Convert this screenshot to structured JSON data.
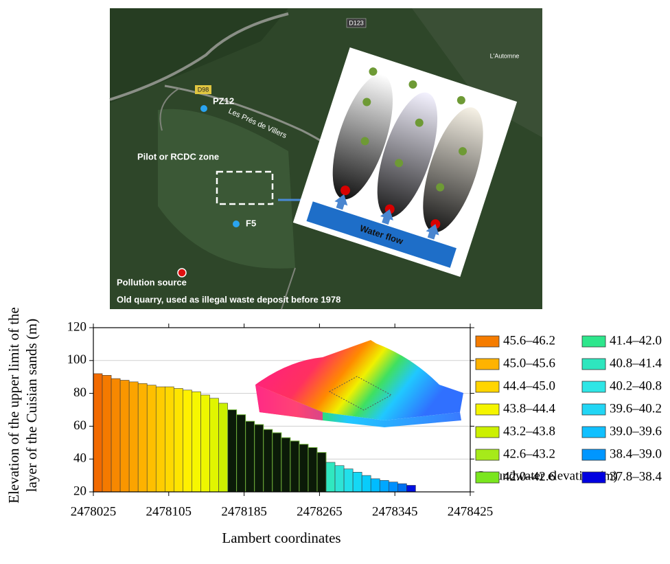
{
  "map": {
    "road_d123": "D123",
    "road_d98": "D98",
    "place_automne": "L'Automne",
    "place_villers": "Les Prés de Villers",
    "well_pz12": "PZ12",
    "well_f5": "F5",
    "pilot_zone": "Pilot or RCDC zone",
    "water_flow": "Water flow",
    "pollution_source": "Pollution source",
    "quarry_note": "Old quarry, used as illegal waste deposit before 1978"
  },
  "chart_data": {
    "type": "histogram",
    "x_label": "Lambert coordinates",
    "y_label": [
      "Elevation of the upper limit of the",
      "layer of the Cuisian sands (m)"
    ],
    "bins": [
      2478025,
      2478034.5,
      2478044,
      2478053.5,
      2478063,
      2478072.5,
      2478082,
      2478091.5,
      2478101,
      2478110.5,
      2478120,
      2478129.5,
      2478139,
      2478148.5,
      2478158,
      2478167.5,
      2478177,
      2478186.5,
      2478196,
      2478205.5,
      2478215,
      2478224.5,
      2478234,
      2478243.5,
      2478253,
      2478262.5,
      2478272,
      2478281.5,
      2478291,
      2478300.5,
      2478310,
      2478319.5,
      2478329,
      2478338.5,
      2478348,
      2478357.5,
      2478367
    ],
    "values": [
      92,
      91,
      89,
      88,
      87,
      86,
      85,
      84,
      84,
      83,
      82,
      81,
      79,
      77,
      74,
      70,
      67,
      63,
      61,
      58,
      56,
      53,
      51,
      49,
      47,
      44,
      38,
      36,
      34,
      32,
      30,
      28,
      27,
      26,
      25,
      24
    ],
    "colors": [
      "#f26a00",
      "#f57a00",
      "#f78800",
      "#f99600",
      "#fba400",
      "#fdb200",
      "#ffbf00",
      "#ffcc00",
      "#ffd800",
      "#ffe400",
      "#fff000",
      "#f7f700",
      "#eef700",
      "#e0f500",
      "#ccf000",
      "#0b1a08",
      "#0b1a08",
      "#0b1a08",
      "#0b1a08",
      "#0b1a08",
      "#0b1a08",
      "#0b1a08",
      "#0b1a08",
      "#0b1a08",
      "#0b1a08",
      "#0b1a08",
      "#30e8c0",
      "#2ee4d6",
      "#22e0ea",
      "#14d8f5",
      "#08ccfa",
      "#00bcff",
      "#00a8ff",
      "#0090ff",
      "#0070f0",
      "#0010e0"
    ],
    "xlim": [
      2478025,
      2478425
    ],
    "xticks": [
      2478025,
      2478105,
      2478185,
      2478265,
      2478345,
      2478425
    ],
    "ylim": [
      20,
      120
    ],
    "yticks": [
      20,
      40,
      60,
      80,
      100,
      120
    ],
    "grid": true,
    "legend": {
      "title": "Groundwater elevation (m)",
      "items": [
        {
          "label": "45.6–46.2",
          "color": "#f57c00"
        },
        {
          "label": "45.0–45.6",
          "color": "#ffb300"
        },
        {
          "label": "44.4–45.0",
          "color": "#ffd500"
        },
        {
          "label": "43.8–44.4",
          "color": "#f5f500"
        },
        {
          "label": "43.2–43.8",
          "color": "#ccf000"
        },
        {
          "label": "42.6–43.2",
          "color": "#a6ea1a"
        },
        {
          "label": "42.0–42.6",
          "color": "#7ae61e"
        },
        {
          "label": "41.4–42.0",
          "color": "#2ee68c"
        },
        {
          "label": "40.8–41.4",
          "color": "#2ee6be"
        },
        {
          "label": "40.2–40.8",
          "color": "#2ee6e6"
        },
        {
          "label": "39.6–40.2",
          "color": "#22d6f5"
        },
        {
          "label": "39.0–39.6",
          "color": "#10c0ff"
        },
        {
          "label": "38.4–39.0",
          "color": "#0096ff"
        },
        {
          "label": "37.8–38.4",
          "color": "#0000e0"
        }
      ]
    }
  }
}
